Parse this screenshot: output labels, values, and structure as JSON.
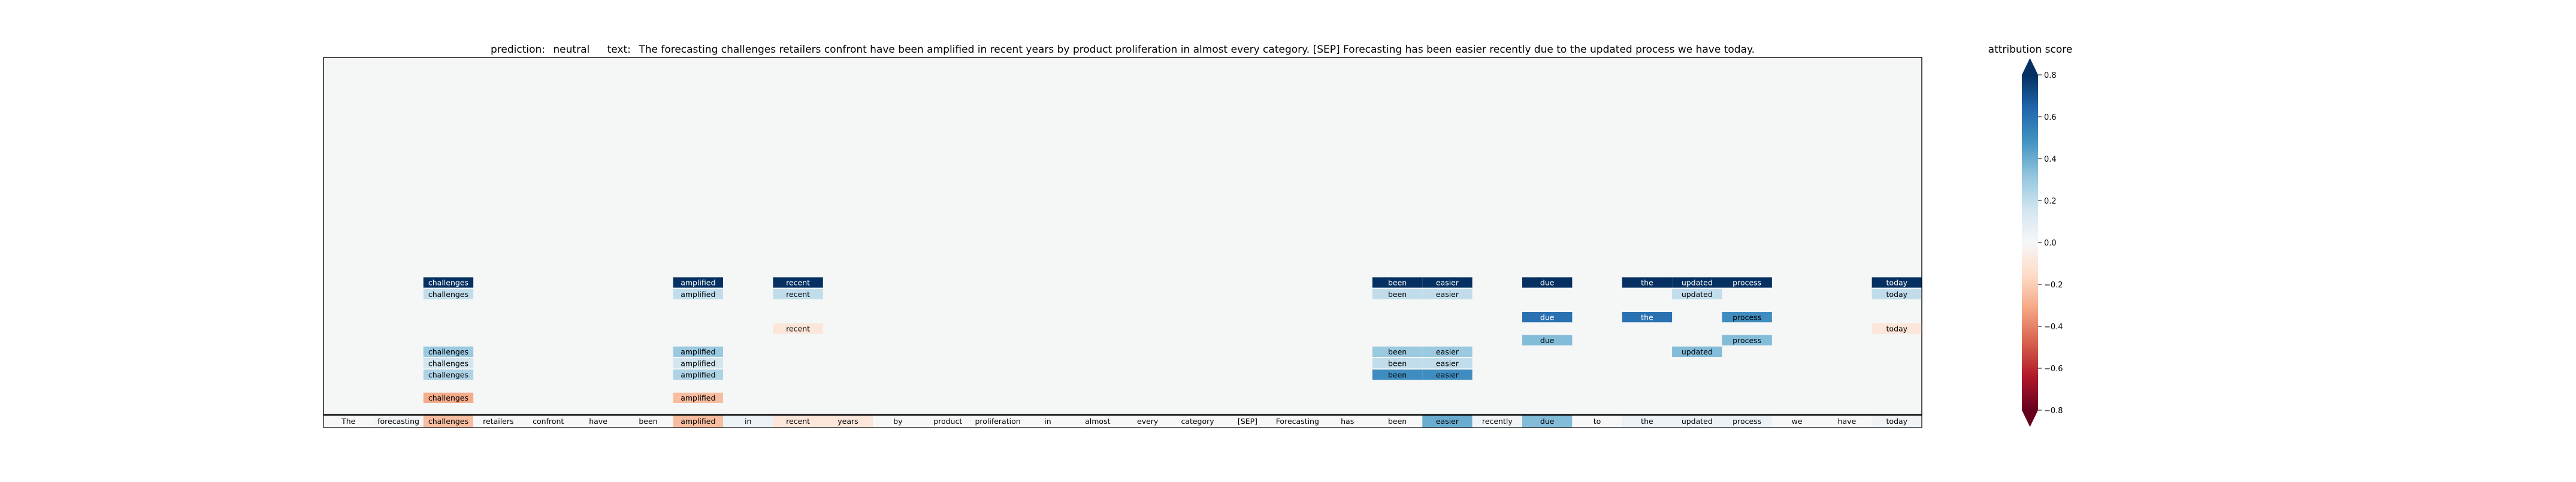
{
  "header": {
    "prediction_label": "prediction:",
    "prediction_value": "neutral",
    "text_label": "text:",
    "text_value": "The forecasting challenges retailers confront have been amplified in recent years by product proliferation in almost every category. [SEP] Forecasting has been easier recently due to the updated process we have today."
  },
  "colorbar": {
    "title": "attribution score",
    "ticks": [
      "0.8",
      "0.6",
      "0.4",
      "0.2",
      "0.0",
      "−0.2",
      "−0.4",
      "−0.6",
      "−0.8"
    ],
    "range": [
      -0.8,
      0.8
    ],
    "extend": "both",
    "colormap": "RdBu"
  },
  "chart_data": {
    "type": "heatmap",
    "title": "",
    "colormap": "RdBu",
    "vmin": -0.8,
    "vmax": 0.8,
    "tokens": [
      "The",
      "forecasting",
      "challenges",
      "retailers",
      "confront",
      "have",
      "been",
      "amplified",
      "in",
      "recent",
      "years",
      "by",
      "product",
      "proliferation",
      "in",
      "almost",
      "every",
      "category",
      "[SEP]",
      "Forecasting",
      "has",
      "been",
      "easier",
      "recently",
      "due",
      "to",
      "the",
      "updated",
      "process",
      "we",
      "have",
      "today"
    ],
    "token_scores": [
      0.0,
      0.02,
      -0.25,
      0.0,
      0.0,
      0.0,
      0.0,
      -0.25,
      0.05,
      -0.1,
      -0.1,
      0.0,
      0.0,
      0.0,
      0.0,
      0.0,
      0.0,
      0.0,
      0.0,
      0.0,
      0.0,
      0.0,
      0.4,
      0.03,
      0.35,
      0.0,
      0.05,
      0.05,
      0.05,
      0.0,
      0.0,
      0.03
    ],
    "layer_rows": [
      {
        "layer": 1,
        "cells": [
          {
            "token": 2,
            "score": -0.3
          },
          {
            "token": 7,
            "score": -0.25
          }
        ]
      },
      {
        "layer": 2,
        "cells": []
      },
      {
        "layer": 3,
        "cells": [
          {
            "token": 2,
            "score": 0.25
          },
          {
            "token": 7,
            "score": 0.25
          },
          {
            "token": 21,
            "score": 0.5
          },
          {
            "token": 22,
            "score": 0.5
          }
        ]
      },
      {
        "layer": 4,
        "cells": [
          {
            "token": 2,
            "score": 0.15
          },
          {
            "token": 7,
            "score": 0.15
          },
          {
            "token": 21,
            "score": 0.2
          },
          {
            "token": 22,
            "score": 0.2
          }
        ]
      },
      {
        "layer": 5,
        "cells": [
          {
            "token": 2,
            "score": 0.3
          },
          {
            "token": 7,
            "score": 0.3
          },
          {
            "token": 21,
            "score": 0.3
          },
          {
            "token": 22,
            "score": 0.3
          },
          {
            "token": 27,
            "score": 0.35
          }
        ]
      },
      {
        "layer": 6,
        "cells": [
          {
            "token": 24,
            "score": 0.35
          },
          {
            "token": 28,
            "score": 0.35
          }
        ]
      },
      {
        "layer": 7,
        "cells": [
          {
            "token": 9,
            "score": -0.1
          },
          {
            "token": 31,
            "score": -0.1
          }
        ]
      },
      {
        "layer": 8,
        "cells": [
          {
            "token": 24,
            "score": 0.6
          },
          {
            "token": 26,
            "score": 0.6
          },
          {
            "token": 28,
            "score": 0.5
          }
        ]
      },
      {
        "layer": 9,
        "cells": []
      },
      {
        "layer": 10,
        "cells": [
          {
            "token": 2,
            "score": 0.2
          },
          {
            "token": 7,
            "score": 0.2
          },
          {
            "token": 9,
            "score": 0.2
          },
          {
            "token": 21,
            "score": 0.2
          },
          {
            "token": 22,
            "score": 0.2
          },
          {
            "token": 27,
            "score": 0.2
          },
          {
            "token": 31,
            "score": 0.2
          }
        ]
      },
      {
        "layer": 11,
        "cells": [
          {
            "token": 2,
            "score": 0.95
          },
          {
            "token": 7,
            "score": 0.95
          },
          {
            "token": 9,
            "score": 0.95
          },
          {
            "token": 21,
            "score": 0.95
          },
          {
            "token": 22,
            "score": 0.95
          },
          {
            "token": 24,
            "score": 0.95
          },
          {
            "token": 26,
            "score": 0.95
          },
          {
            "token": 27,
            "score": 0.95
          },
          {
            "token": 28,
            "score": 0.95
          },
          {
            "token": 31,
            "score": 0.95
          }
        ]
      }
    ]
  }
}
